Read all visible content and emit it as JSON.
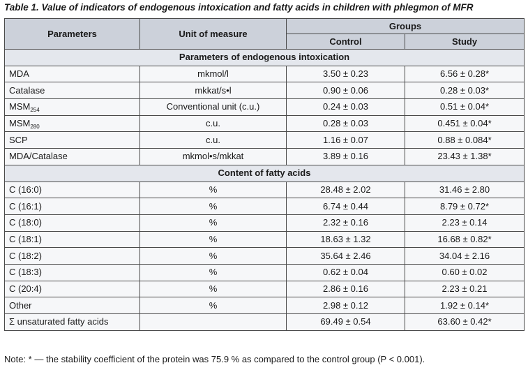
{
  "caption": "Table 1. Value of indicators of endogenous intoxication and fatty acids in children with phlegmon of MFR",
  "headers": {
    "parameters": "Parameters",
    "unit": "Unit of measure",
    "groups": "Groups",
    "control": "Control",
    "study": "Study"
  },
  "sections": [
    {
      "title": "Parameters of endogenous intoxication",
      "rows": [
        {
          "param": "MDA",
          "sub": "",
          "unit": "mkmol/l",
          "control": "3.50 ± 0.23",
          "study": "6.56 ± 0.28*"
        },
        {
          "param": "Catalase",
          "sub": "",
          "unit": "mkkat/s•l",
          "control": "0.90 ± 0.06",
          "study": "0.28 ± 0.03*"
        },
        {
          "param": "MSM",
          "sub": "254",
          "unit": "Conventional unit (c.u.)",
          "control": "0.24 ± 0.03",
          "study": "0.51 ± 0.04*"
        },
        {
          "param": "MSM",
          "sub": "280",
          "unit": "c.u.",
          "control": "0.28 ± 0.03",
          "study": "0.451 ± 0.04*"
        },
        {
          "param": "SCP",
          "sub": "",
          "unit": "c.u.",
          "control": "1.16 ± 0.07",
          "study": "0.88 ± 0.084*"
        },
        {
          "param": "MDA/Catalase",
          "sub": "",
          "unit": "mkmol•s/mkkat",
          "control": "3.89 ± 0.16",
          "study": "23.43 ± 1.38*"
        }
      ]
    },
    {
      "title": "Content of fatty acids",
      "rows": [
        {
          "param": "C (16:0)",
          "sub": "",
          "unit": "%",
          "control": "28.48 ± 2.02",
          "study": "31.46 ± 2.80"
        },
        {
          "param": "C (16:1)",
          "sub": "",
          "unit": "%",
          "control": "6.74 ± 0.44",
          "study": "8.79 ± 0.72*"
        },
        {
          "param": "C (18:0)",
          "sub": "",
          "unit": "%",
          "control": "2.32 ± 0.16",
          "study": "2.23 ± 0.14"
        },
        {
          "param": "C (18:1)",
          "sub": "",
          "unit": "%",
          "control": "18.63 ± 1.32",
          "study": "16.68 ± 0.82*"
        },
        {
          "param": "C (18:2)",
          "sub": "",
          "unit": "%",
          "control": "35.64 ± 2.46",
          "study": "34.04 ± 2.16"
        },
        {
          "param": "C (18:3)",
          "sub": "",
          "unit": "%",
          "control": "0.62 ± 0.04",
          "study": "0.60 ± 0.02"
        },
        {
          "param": "C (20:4)",
          "sub": "",
          "unit": "%",
          "control": "2.86 ± 0.16",
          "study": "2.23 ± 0.21"
        },
        {
          "param": "Other",
          "sub": "",
          "unit": "%",
          "control": "2.98 ± 0.12",
          "study": "1.92 ± 0.14*"
        },
        {
          "param": "Σ unsaturated fatty acids",
          "sub": "",
          "unit": "",
          "control": "69.49 ± 0.54",
          "study": "63.60 ± 0.42*"
        }
      ]
    }
  ],
  "note": "Note: * — the stability coefficient of the protein was 75.9 % as compared to the control group (P < 0.001)."
}
